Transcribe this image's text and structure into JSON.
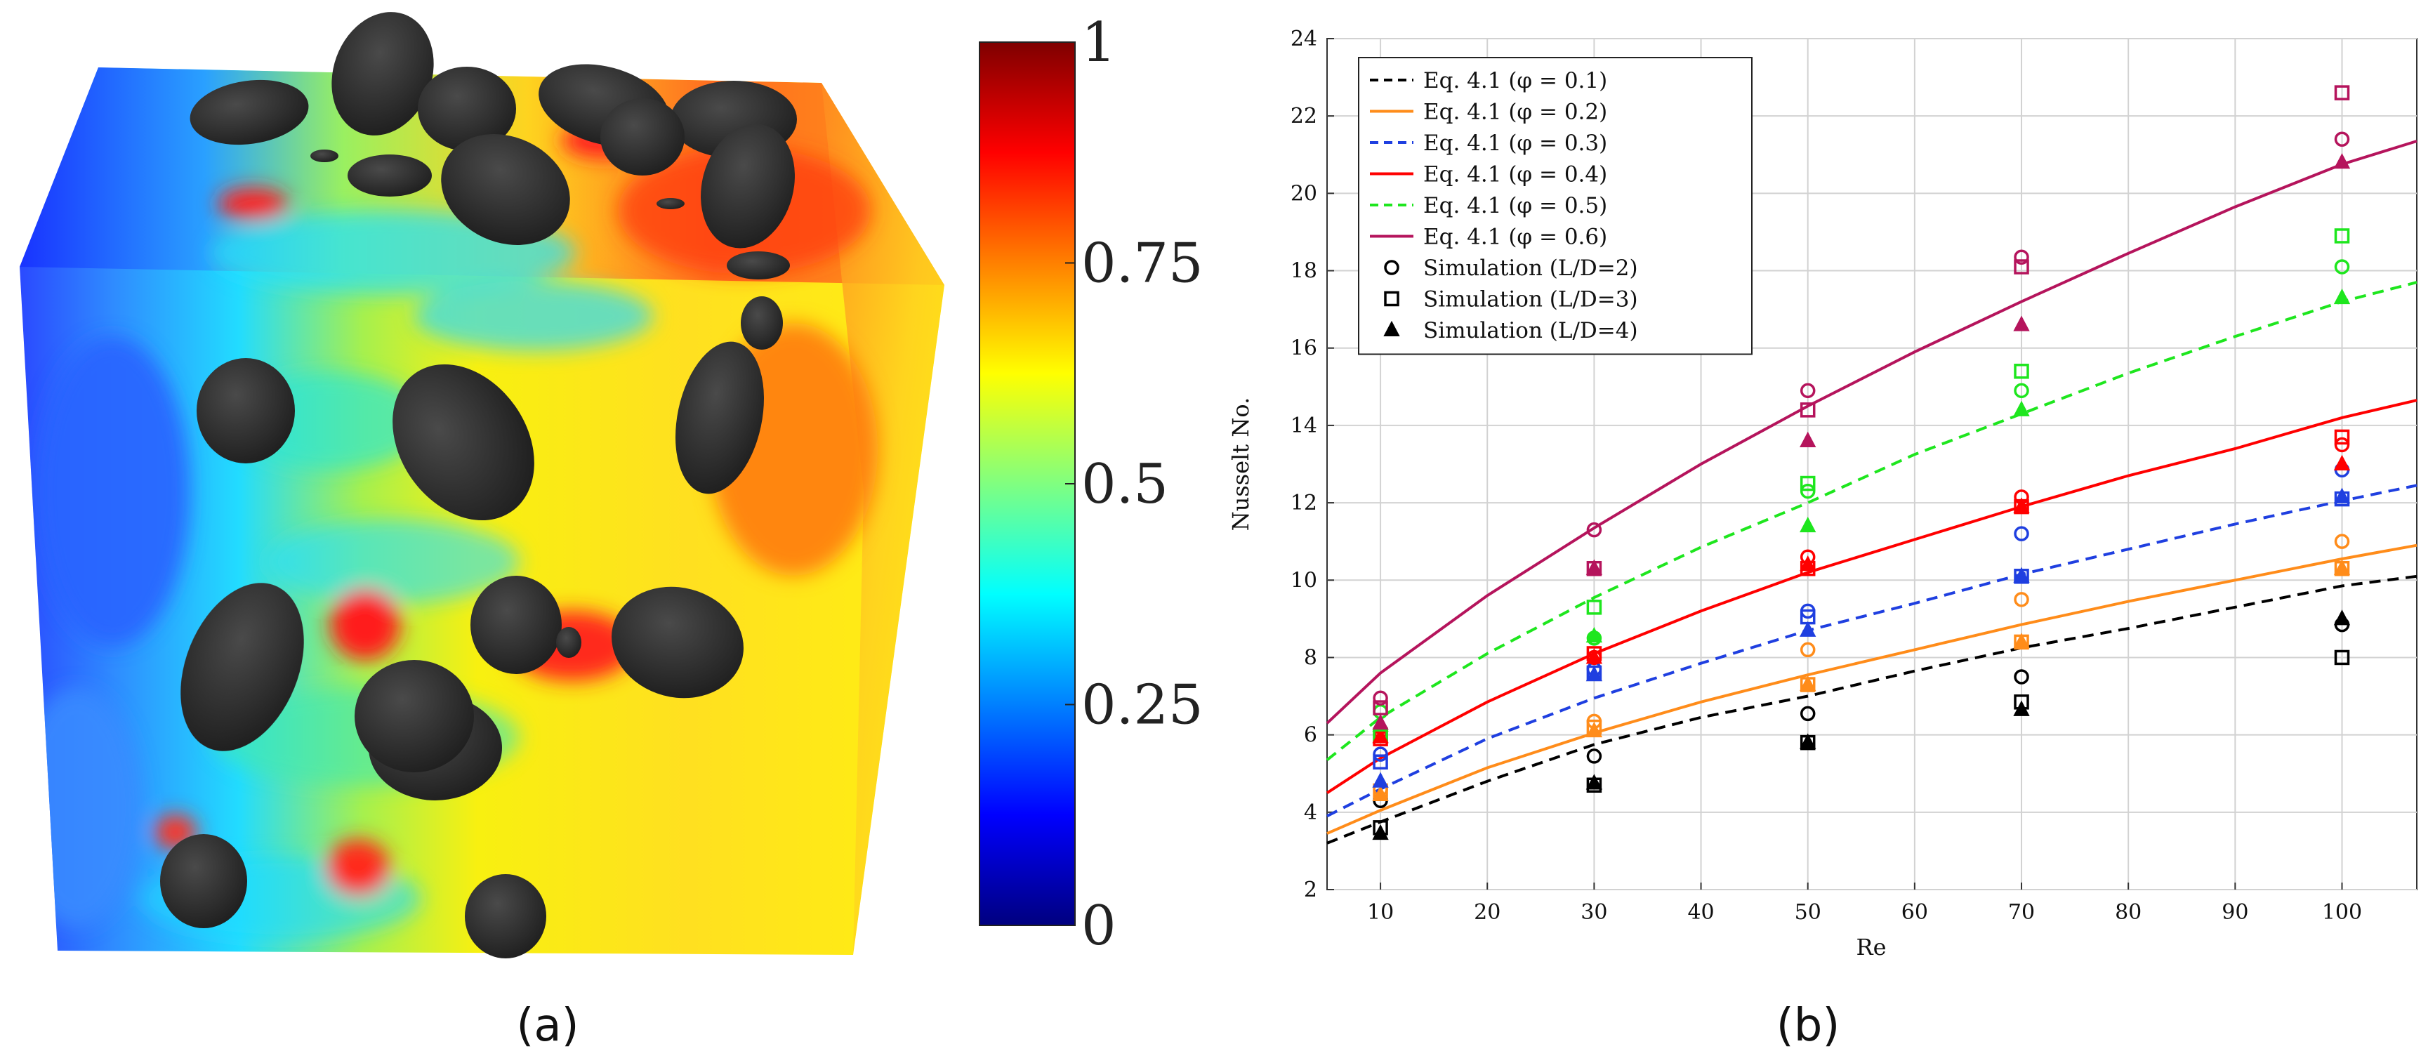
{
  "panel_a": {
    "label": "(a)",
    "colorbar": {
      "ticks": [
        "1",
        "0.75",
        "0.5",
        "0.25",
        "0"
      ],
      "tick_values": [
        1,
        0.75,
        0.5,
        0.25,
        0
      ],
      "colors": [
        "#00007f",
        "#0000ff",
        "#0080ff",
        "#00ffff",
        "#80ff80",
        "#ffff00",
        "#ff8000",
        "#ff0000",
        "#7f0000"
      ]
    }
  },
  "panel_b": {
    "label": "(b)"
  },
  "chart_data": {
    "type": "line",
    "xlabel": "Re",
    "ylabel": "Nusselt No.",
    "xlim": [
      5,
      107
    ],
    "ylim": [
      2,
      24
    ],
    "xticks": [
      10,
      20,
      30,
      40,
      50,
      60,
      70,
      80,
      90,
      100
    ],
    "yticks": [
      2,
      4,
      6,
      8,
      10,
      12,
      14,
      16,
      18,
      20,
      22,
      24
    ],
    "grid": true,
    "legend_position": "top-left",
    "curves": [
      {
        "label": "Eq. 4.1 (φ = 0.1)",
        "color": "#000000",
        "dash": "dashed",
        "x": [
          5,
          10,
          20,
          30,
          40,
          50,
          60,
          70,
          80,
          90,
          100,
          107
        ],
        "y": [
          3.2,
          3.75,
          4.8,
          5.75,
          6.45,
          7.0,
          7.65,
          8.25,
          8.75,
          9.3,
          9.85,
          10.1
        ]
      },
      {
        "label": "Eq. 4.1 (φ = 0.2)",
        "color": "#ff8c1a",
        "dash": "solid",
        "x": [
          5,
          10,
          20,
          30,
          40,
          50,
          60,
          70,
          80,
          90,
          100,
          107
        ],
        "y": [
          3.45,
          4.05,
          5.15,
          6.05,
          6.85,
          7.55,
          8.2,
          8.85,
          9.45,
          10.0,
          10.55,
          10.9
        ]
      },
      {
        "label": "Eq. 4.1 (φ = 0.3)",
        "color": "#1f3fe0",
        "dash": "dashed",
        "x": [
          5,
          10,
          20,
          30,
          40,
          50,
          60,
          70,
          80,
          90,
          100,
          107
        ],
        "y": [
          3.9,
          4.6,
          5.9,
          6.95,
          7.85,
          8.7,
          9.4,
          10.15,
          10.8,
          11.45,
          12.05,
          12.45
        ]
      },
      {
        "label": "Eq. 4.1 (φ = 0.4)",
        "color": "#ff0000",
        "dash": "solid",
        "x": [
          5,
          10,
          20,
          30,
          40,
          50,
          60,
          70,
          80,
          90,
          100,
          107
        ],
        "y": [
          4.5,
          5.4,
          6.85,
          8.1,
          9.2,
          10.2,
          11.05,
          11.9,
          12.7,
          13.4,
          14.2,
          14.65
        ]
      },
      {
        "label": "Eq. 4.1 (φ = 0.5)",
        "color": "#1ee61e",
        "dash": "dashed",
        "x": [
          5,
          10,
          20,
          30,
          40,
          50,
          60,
          70,
          80,
          90,
          100,
          107
        ],
        "y": [
          5.35,
          6.45,
          8.1,
          9.55,
          10.85,
          12.0,
          13.25,
          14.3,
          15.35,
          16.3,
          17.2,
          17.7
        ]
      },
      {
        "label": "Eq. 4.1 (φ = 0.6)",
        "color": "#b5145c",
        "dash": "solid",
        "x": [
          5,
          10,
          20,
          30,
          40,
          50,
          60,
          70,
          80,
          90,
          100,
          107
        ],
        "y": [
          6.3,
          7.6,
          9.6,
          11.35,
          13.0,
          14.5,
          15.9,
          17.2,
          18.45,
          19.65,
          20.75,
          21.35
        ]
      }
    ],
    "scatter": [
      {
        "marker": "circle",
        "label": "Simulation (L/D=2)",
        "points": [
          {
            "re": 10,
            "values": [
              4.3,
              4.6,
              5.5,
              6.1,
              6.6,
              6.95
            ]
          },
          {
            "re": 30,
            "values": [
              5.45,
              6.35,
              7.7,
              8.0,
              8.5,
              11.3
            ]
          },
          {
            "re": 50,
            "values": [
              6.55,
              8.2,
              9.2,
              10.6,
              12.3,
              14.9
            ]
          },
          {
            "re": 70,
            "values": [
              7.5,
              9.5,
              11.2,
              12.15,
              14.9,
              18.35
            ]
          },
          {
            "re": 100,
            "values": [
              8.85,
              11.0,
              12.85,
              13.5,
              18.1,
              21.4
            ]
          }
        ]
      },
      {
        "marker": "square",
        "label": "Simulation (L/D=3)",
        "points": [
          {
            "re": 10,
            "values": [
              3.6,
              4.55,
              5.3,
              5.9,
              6.0,
              6.7
            ]
          },
          {
            "re": 30,
            "values": [
              4.7,
              6.2,
              7.6,
              8.1,
              9.3,
              10.3
            ]
          },
          {
            "re": 50,
            "values": [
              5.8,
              7.3,
              9.05,
              10.3,
              12.5,
              14.4
            ]
          },
          {
            "re": 70,
            "values": [
              6.85,
              8.4,
              10.1,
              11.9,
              15.4,
              18.1
            ]
          },
          {
            "re": 100,
            "values": [
              8.0,
              10.3,
              12.1,
              13.7,
              18.9,
              22.6
            ]
          }
        ]
      },
      {
        "marker": "triangle",
        "label": "Simulation (L/D=4)",
        "points": [
          {
            "re": 10,
            "values": [
              3.45,
              4.45,
              4.8,
              5.95,
              6.25,
              6.3
            ]
          },
          {
            "re": 30,
            "values": [
              4.75,
              6.1,
              7.55,
              8.0,
              8.55,
              10.3
            ]
          },
          {
            "re": 50,
            "values": [
              5.8,
              7.3,
              8.7,
              10.4,
              11.4,
              13.6
            ]
          },
          {
            "re": 70,
            "values": [
              6.65,
              8.4,
              10.1,
              11.9,
              14.4,
              16.6
            ]
          },
          {
            "re": 100,
            "values": [
              9.0,
              10.3,
              12.15,
              13.0,
              17.3,
              20.8
            ]
          }
        ]
      }
    ],
    "legend": [
      {
        "text": "Eq. 4.1 (φ = 0.1)",
        "kind": "line",
        "color": "#000000",
        "dash": "dashed"
      },
      {
        "text": "Eq. 4.1 (φ = 0.2)",
        "kind": "line",
        "color": "#ff8c1a",
        "dash": "solid"
      },
      {
        "text": "Eq. 4.1 (φ = 0.3)",
        "kind": "line",
        "color": "#1f3fe0",
        "dash": "dashed"
      },
      {
        "text": "Eq. 4.1 (φ = 0.4)",
        "kind": "line",
        "color": "#ff0000",
        "dash": "solid"
      },
      {
        "text": "Eq. 4.1 (φ = 0.5)",
        "kind": "line",
        "color": "#1ee61e",
        "dash": "dashed"
      },
      {
        "text": "Eq. 4.1 (φ = 0.6)",
        "kind": "line",
        "color": "#b5145c",
        "dash": "solid"
      },
      {
        "text": "Simulation (L/D=2)",
        "kind": "circle",
        "color": "#000000"
      },
      {
        "text": "Simulation (L/D=3)",
        "kind": "square",
        "color": "#000000"
      },
      {
        "text": "Simulation (L/D=4)",
        "kind": "triangle",
        "color": "#000000"
      }
    ]
  }
}
